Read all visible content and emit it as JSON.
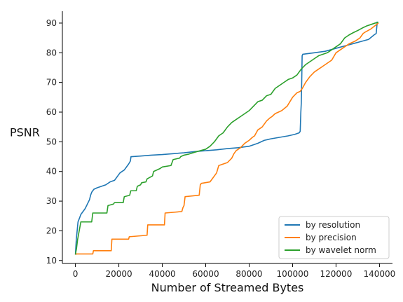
{
  "chart_data": {
    "type": "line",
    "title": "",
    "xlabel": "Number of Streamed Bytes",
    "ylabel": "PSNR",
    "xlim": [
      -6000,
      146000
    ],
    "ylim": [
      9,
      94
    ],
    "xticks": [
      0,
      20000,
      40000,
      60000,
      80000,
      100000,
      120000,
      140000
    ],
    "yticks": [
      10,
      20,
      30,
      40,
      50,
      60,
      70,
      80,
      90
    ],
    "legend_position": "bottom-right",
    "series": [
      {
        "name": "by resolution",
        "color": "#1f77b4",
        "x": [
          0,
          400,
          800,
          1200,
          2000,
          2500,
          3500,
          4500,
          5500,
          6500,
          7000,
          7500,
          8500,
          10000,
          12000,
          14000,
          16000,
          18000,
          19500,
          20500,
          21500,
          22500,
          23500,
          24500,
          25300,
          25600,
          26000,
          30000,
          35000,
          40000,
          45000,
          50000,
          55000,
          60000,
          65000,
          70000,
          75000,
          80000,
          84000,
          87000,
          90000,
          94000,
          98000,
          101000,
          103000,
          103500,
          103800,
          104000,
          104200,
          104400,
          104700,
          110000,
          115000,
          120000,
          125000,
          130000,
          135000,
          137500,
          138500,
          139000
        ],
        "y": [
          12,
          17,
          20,
          23,
          24.5,
          25.5,
          26.5,
          27.5,
          29,
          30.5,
          32,
          33,
          34,
          34.5,
          35,
          35.5,
          36.5,
          37,
          38.5,
          39.5,
          40,
          40.5,
          41.5,
          42.5,
          43.5,
          45,
          45,
          45.2,
          45.5,
          45.7,
          46,
          46.3,
          46.7,
          47,
          47.3,
          47.7,
          48,
          48.5,
          49.5,
          50.5,
          51,
          51.5,
          52,
          52.5,
          53,
          53.5,
          60,
          63,
          70,
          79,
          79.5,
          80,
          80.5,
          81.5,
          82.5,
          83.5,
          84.5,
          86,
          86.5,
          90.5
        ]
      },
      {
        "name": "by precision",
        "color": "#ff7f0e",
        "x": [
          0,
          400,
          8000,
          8300,
          16500,
          16800,
          24500,
          24800,
          33000,
          33300,
          41000,
          41300,
          49000,
          49500,
          50000,
          50500,
          57000,
          57500,
          58000,
          62000,
          64500,
          65000,
          66000,
          70000,
          72000,
          73000,
          74000,
          76000,
          78000,
          80000,
          81500,
          82500,
          84000,
          86000,
          88000,
          89500,
          90500,
          92000,
          95000,
          97500,
          100000,
          102000,
          103500,
          104500,
          106000,
          108000,
          110000,
          112000,
          114000,
          116000,
          118000,
          120000,
          123000,
          126000,
          129000,
          131000,
          132500,
          133500,
          136000,
          139500
        ],
        "y": [
          12,
          12.2,
          12.2,
          13.3,
          13.3,
          17.2,
          17.2,
          18,
          18.5,
          22,
          22,
          26,
          26.5,
          27.8,
          28.5,
          31.5,
          32,
          35.5,
          36,
          36.5,
          39,
          39.5,
          42,
          43,
          44.5,
          46,
          47,
          48,
          49.5,
          50.5,
          51.5,
          52,
          54,
          55,
          57,
          58,
          58.5,
          59.5,
          60.5,
          62,
          65,
          66.5,
          67,
          68,
          70,
          72,
          73.5,
          74.5,
          75.5,
          76.5,
          77.5,
          80,
          81.5,
          83,
          84,
          85,
          86.5,
          87,
          88,
          90
        ]
      },
      {
        "name": "by wavelet norm",
        "color": "#2ca02c",
        "x": [
          0,
          500,
          1000,
          1500,
          2000,
          2500,
          3000,
          7500,
          8000,
          14500,
          15000,
          17500,
          18000,
          22000,
          22500,
          25000,
          25500,
          28000,
          28500,
          30000,
          30500,
          32500,
          33000,
          35500,
          36000,
          39000,
          40000,
          44000,
          45000,
          48000,
          48500,
          50000,
          52000,
          55000,
          57500,
          60000,
          62000,
          64000,
          66000,
          68000,
          70000,
          72000,
          74000,
          76000,
          78000,
          80000,
          82000,
          84000,
          86000,
          88000,
          90000,
          92000,
          94000,
          96000,
          98000,
          100000,
          102000,
          104000,
          106000,
          108000,
          110000,
          112000,
          114000,
          116000,
          118000,
          120000,
          122000,
          124000,
          126000,
          128000,
          130000,
          132000,
          134000,
          136000,
          138000,
          139500
        ],
        "y": [
          12,
          14,
          17,
          19,
          21,
          23,
          23,
          23,
          26,
          26,
          28.5,
          29,
          29.5,
          29.5,
          31.5,
          32,
          33.5,
          33.5,
          35,
          35.5,
          36.2,
          36.5,
          37.5,
          38.5,
          40,
          41,
          41.5,
          42,
          44,
          44.5,
          45,
          45.5,
          45.8,
          46.5,
          47,
          47.5,
          48.5,
          50,
          52,
          53,
          55,
          56.5,
          57.5,
          58.5,
          59.5,
          60.5,
          62,
          63.5,
          64,
          65.5,
          66,
          68,
          69,
          70,
          71,
          71.5,
          72.5,
          74.5,
          76,
          77,
          78,
          79,
          79.5,
          80,
          81,
          82,
          83,
          85,
          86,
          86.8,
          87.5,
          88.3,
          89,
          89.5,
          90,
          90.3
        ]
      }
    ]
  }
}
